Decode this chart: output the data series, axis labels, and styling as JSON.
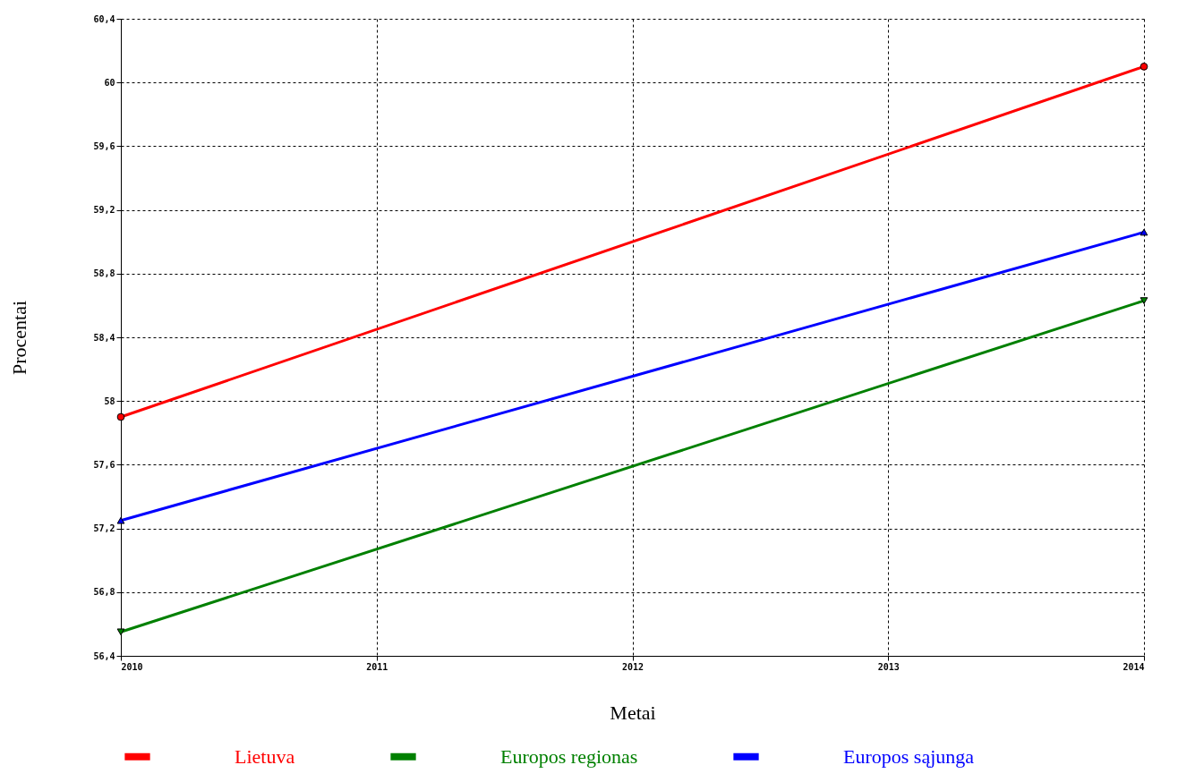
{
  "chart_data": {
    "type": "line",
    "xlabel": "Metai",
    "ylabel": "Procentai",
    "x": [
      2010,
      2014
    ],
    "xlim": [
      2010,
      2014
    ],
    "xticks": [
      2010,
      2011,
      2012,
      2013,
      2014
    ],
    "ylim": [
      56.4,
      60.4
    ],
    "yticks": [
      {
        "value": 56.4,
        "label": "56,4"
      },
      {
        "value": 56.8,
        "label": "56,8"
      },
      {
        "value": 57.2,
        "label": "57,2"
      },
      {
        "value": 57.6,
        "label": "57,6"
      },
      {
        "value": 58,
        "label": "58"
      },
      {
        "value": 58.4,
        "label": "58,4"
      },
      {
        "value": 58.8,
        "label": "58,8"
      },
      {
        "value": 59.2,
        "label": "59,2"
      },
      {
        "value": 59.6,
        "label": "59,6"
      },
      {
        "value": 60,
        "label": "60"
      },
      {
        "value": 60.4,
        "label": "60,4"
      }
    ],
    "grid": true,
    "legend": "bottom",
    "line_style": "solid",
    "series": [
      {
        "name": "Lietuva",
        "color": "#ff0000",
        "marker": "circle",
        "values": [
          57.9,
          60.1
        ]
      },
      {
        "name": "Europos regionas",
        "color": "#008000",
        "marker": "triangle-down",
        "values": [
          56.55,
          58.63
        ]
      },
      {
        "name": "Europos sąjunga",
        "color": "#0000ff",
        "marker": "triangle",
        "values": [
          57.25,
          59.06
        ]
      }
    ]
  }
}
